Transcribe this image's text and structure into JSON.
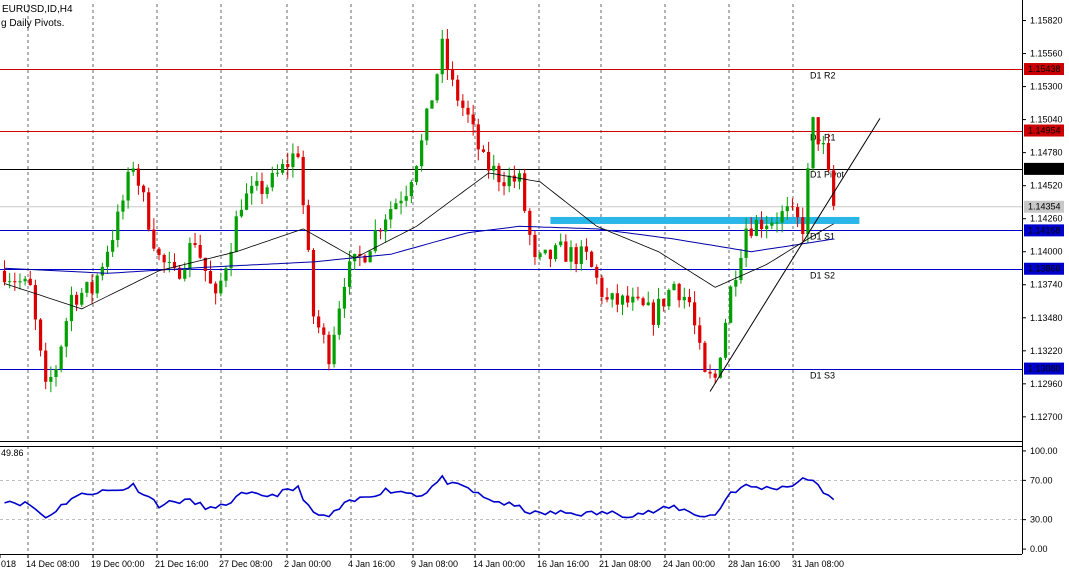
{
  "header": {
    "symbol_line": "EURUSD,ID,H4",
    "indicator_line": "g Daily Pivots.",
    "rsi_value": "49.86"
  },
  "colors": {
    "resistance": "#cc0000",
    "support": "#0000cc",
    "pivot": "#000000",
    "candle_up": "#00a000",
    "candle_down": "#dd0000",
    "ma_fast": "#000000",
    "ma_slow": "#0000aa",
    "zone": "#29b6e8",
    "rsi_line": "#0000cc",
    "current_price": "#c8c8c8"
  },
  "chart_data": {
    "type": "candlestick",
    "price_axis": {
      "ylim": [
        1.1251,
        1.1595
      ],
      "ticks": [
        "1.15820",
        "1.15560",
        "1.15300",
        "1.15040",
        "1.14780",
        "1.14520",
        "1.14260",
        "1.14000",
        "1.13740",
        "1.13480",
        "1.13220",
        "1.12960",
        "1.12700"
      ]
    },
    "price_labels": [
      {
        "value": 1.15438,
        "text": "1.15438",
        "kind": "resistance"
      },
      {
        "value": 1.14954,
        "text": "1.14954",
        "kind": "resistance"
      },
      {
        "value": 1.14652,
        "text": "1.14652",
        "kind": "pivot"
      },
      {
        "value": 1.14354,
        "text": "1.14354",
        "kind": "current"
      },
      {
        "value": 1.14168,
        "text": "1.14168",
        "kind": "support"
      },
      {
        "value": 1.13866,
        "text": "1.13866",
        "kind": "support"
      },
      {
        "value": 1.1308,
        "text": "1.13080",
        "kind": "support"
      }
    ],
    "pivot_levels": [
      {
        "name": "D1  R2",
        "value": 1.15438,
        "kind": "resistance"
      },
      {
        "name": "D1  R1",
        "value": 1.14954,
        "kind": "resistance"
      },
      {
        "name": "D1  Pivot",
        "value": 1.14652,
        "kind": "pivot"
      },
      {
        "name": "D1  S1",
        "value": 1.14168,
        "kind": "support"
      },
      {
        "name": "D1  S2",
        "value": 1.13866,
        "kind": "support"
      },
      {
        "name": "D1  S3",
        "value": 1.1308,
        "kind": "support"
      }
    ],
    "x_axis_labels": [
      "018",
      "14 Dec 08:00",
      "19 Dec 00:00",
      "21 Dec 16:00",
      "27 Dec 08:00",
      "2 Jan 00:00",
      "4 Jan 16:00",
      "9 Jan 08:00",
      "14 Jan 00:00",
      "16 Jan 16:00",
      "21 Jan 08:00",
      "24 Jan 00:00",
      "28 Jan 16:00",
      "31 Jan 08:00"
    ],
    "bar_count": 162,
    "close_path": [
      {
        "bar": 0,
        "close": 1.1385
      },
      {
        "bar": 5,
        "close": 1.137
      },
      {
        "bar": 8,
        "close": 1.129
      },
      {
        "bar": 10,
        "close": 1.131
      },
      {
        "bar": 13,
        "close": 1.1365
      },
      {
        "bar": 17,
        "close": 1.137
      },
      {
        "bar": 22,
        "close": 1.1425
      },
      {
        "bar": 25,
        "close": 1.147
      },
      {
        "bar": 30,
        "close": 1.1395
      },
      {
        "bar": 33,
        "close": 1.138
      },
      {
        "bar": 37,
        "close": 1.141
      },
      {
        "bar": 41,
        "close": 1.136
      },
      {
        "bar": 46,
        "close": 1.144
      },
      {
        "bar": 52,
        "close": 1.1455
      },
      {
        "bar": 57,
        "close": 1.148
      },
      {
        "bar": 60,
        "close": 1.135
      },
      {
        "bar": 63,
        "close": 1.132
      },
      {
        "bar": 66,
        "close": 1.138
      },
      {
        "bar": 70,
        "close": 1.14
      },
      {
        "bar": 74,
        "close": 1.143
      },
      {
        "bar": 78,
        "close": 1.145
      },
      {
        "bar": 81,
        "close": 1.1485
      },
      {
        "bar": 85,
        "close": 1.156
      },
      {
        "bar": 87,
        "close": 1.153
      },
      {
        "bar": 90,
        "close": 1.1505
      },
      {
        "bar": 93,
        "close": 1.147
      },
      {
        "bar": 96,
        "close": 1.146
      },
      {
        "bar": 100,
        "close": 1.1455
      },
      {
        "bar": 103,
        "close": 1.139
      },
      {
        "bar": 108,
        "close": 1.14
      },
      {
        "bar": 113,
        "close": 1.1395
      },
      {
        "bar": 117,
        "close": 1.136
      },
      {
        "bar": 121,
        "close": 1.136
      },
      {
        "bar": 126,
        "close": 1.135
      },
      {
        "bar": 130,
        "close": 1.1375
      },
      {
        "bar": 133,
        "close": 1.136
      },
      {
        "bar": 136,
        "close": 1.13
      },
      {
        "bar": 138,
        "close": 1.13
      },
      {
        "bar": 141,
        "close": 1.137
      },
      {
        "bar": 144,
        "close": 1.142
      },
      {
        "bar": 148,
        "close": 1.1425
      },
      {
        "bar": 152,
        "close": 1.143
      },
      {
        "bar": 155,
        "close": 1.142
      },
      {
        "bar": 157,
        "close": 1.15
      },
      {
        "bar": 159,
        "close": 1.148
      },
      {
        "bar": 161,
        "close": 1.1435
      }
    ],
    "ma_fast_path": [
      {
        "bar": 0,
        "value": 1.1375
      },
      {
        "bar": 15,
        "value": 1.1355
      },
      {
        "bar": 30,
        "value": 1.1385
      },
      {
        "bar": 45,
        "value": 1.14
      },
      {
        "bar": 58,
        "value": 1.1418
      },
      {
        "bar": 68,
        "value": 1.1395
      },
      {
        "bar": 80,
        "value": 1.142
      },
      {
        "bar": 94,
        "value": 1.1462
      },
      {
        "bar": 104,
        "value": 1.1455
      },
      {
        "bar": 115,
        "value": 1.142
      },
      {
        "bar": 127,
        "value": 1.14
      },
      {
        "bar": 138,
        "value": 1.1372
      },
      {
        "bar": 148,
        "value": 1.139
      },
      {
        "bar": 156,
        "value": 1.141
      },
      {
        "bar": 161,
        "value": 1.1422
      }
    ],
    "ma_slow_path": [
      {
        "bar": 0,
        "value": 1.1387
      },
      {
        "bar": 20,
        "value": 1.1383
      },
      {
        "bar": 40,
        "value": 1.1388
      },
      {
        "bar": 60,
        "value": 1.1392
      },
      {
        "bar": 75,
        "value": 1.1398
      },
      {
        "bar": 90,
        "value": 1.1415
      },
      {
        "bar": 100,
        "value": 1.142
      },
      {
        "bar": 115,
        "value": 1.1418
      },
      {
        "bar": 130,
        "value": 1.141
      },
      {
        "bar": 145,
        "value": 1.14
      },
      {
        "bar": 161,
        "value": 1.141
      }
    ],
    "trendline": {
      "bar1": 137,
      "price1": 1.129,
      "bar2": 170,
      "price2": 1.1505
    },
    "zone": {
      "bar1": 106,
      "bar2": 166,
      "price_low": 1.1418,
      "price_high": 1.1425
    },
    "rsi": {
      "ylim": [
        -5,
        105
      ],
      "ticks": [
        "100.00",
        "70.00",
        "30.00",
        "0.00"
      ],
      "levels": [
        70,
        30
      ],
      "path": [
        {
          "bar": 0,
          "value": 50
        },
        {
          "bar": 5,
          "value": 45
        },
        {
          "bar": 8,
          "value": 32
        },
        {
          "bar": 13,
          "value": 52
        },
        {
          "bar": 17,
          "value": 58
        },
        {
          "bar": 22,
          "value": 60
        },
        {
          "bar": 25,
          "value": 65
        },
        {
          "bar": 30,
          "value": 45
        },
        {
          "bar": 35,
          "value": 50
        },
        {
          "bar": 41,
          "value": 40
        },
        {
          "bar": 46,
          "value": 55
        },
        {
          "bar": 52,
          "value": 55
        },
        {
          "bar": 57,
          "value": 62
        },
        {
          "bar": 60,
          "value": 35
        },
        {
          "bar": 63,
          "value": 33
        },
        {
          "bar": 66,
          "value": 45
        },
        {
          "bar": 70,
          "value": 53
        },
        {
          "bar": 74,
          "value": 60
        },
        {
          "bar": 78,
          "value": 58
        },
        {
          "bar": 81,
          "value": 55
        },
        {
          "bar": 85,
          "value": 72
        },
        {
          "bar": 87,
          "value": 65
        },
        {
          "bar": 90,
          "value": 62
        },
        {
          "bar": 93,
          "value": 52
        },
        {
          "bar": 96,
          "value": 48
        },
        {
          "bar": 100,
          "value": 42
        },
        {
          "bar": 103,
          "value": 36
        },
        {
          "bar": 108,
          "value": 37
        },
        {
          "bar": 113,
          "value": 36
        },
        {
          "bar": 117,
          "value": 37
        },
        {
          "bar": 121,
          "value": 35
        },
        {
          "bar": 126,
          "value": 38
        },
        {
          "bar": 130,
          "value": 43
        },
        {
          "bar": 133,
          "value": 38
        },
        {
          "bar": 136,
          "value": 33
        },
        {
          "bar": 138,
          "value": 35
        },
        {
          "bar": 141,
          "value": 58
        },
        {
          "bar": 144,
          "value": 64
        },
        {
          "bar": 148,
          "value": 62
        },
        {
          "bar": 152,
          "value": 64
        },
        {
          "bar": 155,
          "value": 70
        },
        {
          "bar": 157,
          "value": 72
        },
        {
          "bar": 159,
          "value": 55
        },
        {
          "bar": 161,
          "value": 52
        }
      ]
    }
  }
}
